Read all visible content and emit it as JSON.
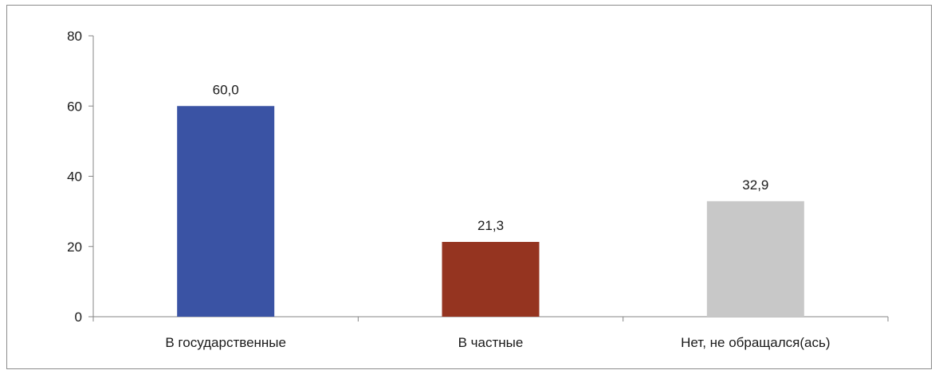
{
  "chart_data": {
    "type": "bar",
    "title": "",
    "xlabel": "",
    "ylabel": "",
    "ylim": [
      0,
      80
    ],
    "yticks": [
      0,
      20,
      40,
      60,
      80
    ],
    "grid": false,
    "legend": "none",
    "categories": [
      "В государственные",
      "В частные",
      "Нет, не обращался(ась)"
    ],
    "values": [
      60.0,
      21.3,
      32.9
    ],
    "data_labels": [
      "60,0",
      "21,3",
      "32,9"
    ],
    "colors": [
      "#3a53a4",
      "#953420",
      "#c8c8c8"
    ]
  }
}
